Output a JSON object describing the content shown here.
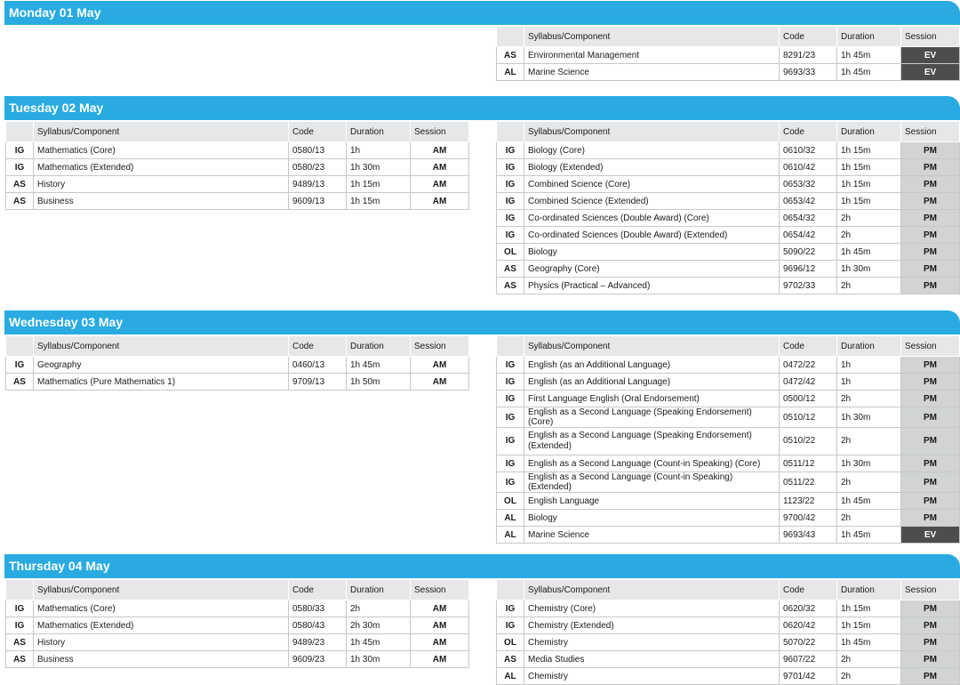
{
  "columns": {
    "subject": "Syllabus/Component",
    "code": "Code",
    "duration": "Duration",
    "session": "Session"
  },
  "days": [
    {
      "title": "Monday 01 May",
      "left": [],
      "right": [
        {
          "level": "AS",
          "subject": "Environmental Management",
          "code": "8291/23",
          "duration": "1h 45m",
          "session": "EV"
        },
        {
          "level": "AL",
          "subject": "Marine Science",
          "code": "9693/33",
          "duration": "1h 45m",
          "session": "EV"
        }
      ]
    },
    {
      "title": "Tuesday 02 May",
      "left": [
        {
          "level": "IG",
          "subject": "Mathematics (Core)",
          "code": "0580/13",
          "duration": "1h",
          "session": "AM"
        },
        {
          "level": "IG",
          "subject": "Mathematics (Extended)",
          "code": "0580/23",
          "duration": "1h 30m",
          "session": "AM"
        },
        {
          "level": "AS",
          "subject": "History",
          "code": "9489/13",
          "duration": "1h 15m",
          "session": "AM"
        },
        {
          "level": "AS",
          "subject": "Business",
          "code": "9609/13",
          "duration": "1h 15m",
          "session": "AM"
        }
      ],
      "right": [
        {
          "level": "IG",
          "subject": "Biology (Core)",
          "code": "0610/32",
          "duration": "1h 15m",
          "session": "PM"
        },
        {
          "level": "IG",
          "subject": "Biology (Extended)",
          "code": "0610/42",
          "duration": "1h 15m",
          "session": "PM"
        },
        {
          "level": "IG",
          "subject": "Combined Science (Core)",
          "code": "0653/32",
          "duration": "1h 15m",
          "session": "PM"
        },
        {
          "level": "IG",
          "subject": "Combined Science (Extended)",
          "code": "0653/42",
          "duration": "1h 15m",
          "session": "PM"
        },
        {
          "level": "IG",
          "subject": "Co-ordinated Sciences (Double Award) (Core)",
          "code": "0654/32",
          "duration": "2h",
          "session": "PM"
        },
        {
          "level": "IG",
          "subject": "Co-ordinated Sciences (Double Award) (Extended)",
          "code": "0654/42",
          "duration": "2h",
          "session": "PM"
        },
        {
          "level": "OL",
          "subject": "Biology",
          "code": "5090/22",
          "duration": "1h 45m",
          "session": "PM"
        },
        {
          "level": "AS",
          "subject": "Geography (Core)",
          "code": "9696/12",
          "duration": "1h 30m",
          "session": "PM"
        },
        {
          "level": "AS",
          "subject": "Physics (Practical – Advanced)",
          "code": "9702/33",
          "duration": "2h",
          "session": "PM"
        }
      ]
    },
    {
      "title": "Wednesday 03 May",
      "left": [
        {
          "level": "IG",
          "subject": "Geography",
          "code": "0460/13",
          "duration": "1h 45m",
          "session": "AM"
        },
        {
          "level": "AS",
          "subject": "Mathematics (Pure Mathematics 1)",
          "code": "9709/13",
          "duration": "1h 50m",
          "session": "AM"
        }
      ],
      "right": [
        {
          "level": "IG",
          "subject": "English (as an Additional Language)",
          "code": "0472/22",
          "duration": "1h",
          "session": "PM"
        },
        {
          "level": "IG",
          "subject": "English (as an Additional Language)",
          "code": "0472/42",
          "duration": "1h",
          "session": "PM"
        },
        {
          "level": "IG",
          "subject": "First Language English (Oral Endorsement)",
          "code": "0500/12",
          "duration": "2h",
          "session": "PM"
        },
        {
          "level": "IG",
          "subject": "English as a Second Language (Speaking Endorsement) (Core)",
          "code": "0510/12",
          "duration": "1h 30m",
          "session": "PM"
        },
        {
          "level": "IG",
          "subject": "English as a Second Language (Speaking Endorsement) (Extended)",
          "code": "0510/22",
          "duration": "2h",
          "session": "PM",
          "tall": true
        },
        {
          "level": "IG",
          "subject": "English as a Second Language (Count-in Speaking) (Core)",
          "code": "0511/12",
          "duration": "1h 30m",
          "session": "PM"
        },
        {
          "level": "IG",
          "subject": "English as a Second Language (Count-in Speaking) (Extended)",
          "code": "0511/22",
          "duration": "2h",
          "session": "PM"
        },
        {
          "level": "OL",
          "subject": "English Language",
          "code": "1123/22",
          "duration": "1h 45m",
          "session": "PM"
        },
        {
          "level": "AL",
          "subject": "Biology",
          "code": "9700/42",
          "duration": "2h",
          "session": "PM"
        },
        {
          "level": "AL",
          "subject": "Marine Science",
          "code": "9693/43",
          "duration": "1h 45m",
          "session": "EV"
        }
      ]
    },
    {
      "title": "Thursday 04 May",
      "left": [
        {
          "level": "IG",
          "subject": "Mathematics (Core)",
          "code": "0580/33",
          "duration": "2h",
          "session": "AM"
        },
        {
          "level": "IG",
          "subject": "Mathematics (Extended)",
          "code": "0580/43",
          "duration": "2h 30m",
          "session": "AM"
        },
        {
          "level": "AS",
          "subject": "History",
          "code": "9489/23",
          "duration": "1h 45m",
          "session": "AM"
        },
        {
          "level": "AS",
          "subject": "Business",
          "code": "9609/23",
          "duration": "1h 30m",
          "session": "AM"
        }
      ],
      "right": [
        {
          "level": "IG",
          "subject": "Chemistry (Core)",
          "code": "0620/32",
          "duration": "1h 15m",
          "session": "PM"
        },
        {
          "level": "IG",
          "subject": "Chemistry (Extended)",
          "code": "0620/42",
          "duration": "1h 15m",
          "session": "PM"
        },
        {
          "level": "OL",
          "subject": "Chemistry",
          "code": "5070/22",
          "duration": "1h 45m",
          "session": "PM"
        },
        {
          "level": "AS",
          "subject": "Media Studies",
          "code": "9607/22",
          "duration": "2h",
          "session": "PM"
        },
        {
          "level": "AL",
          "subject": "Chemistry",
          "code": "9701/42",
          "duration": "2h",
          "session": "PM"
        }
      ]
    }
  ]
}
